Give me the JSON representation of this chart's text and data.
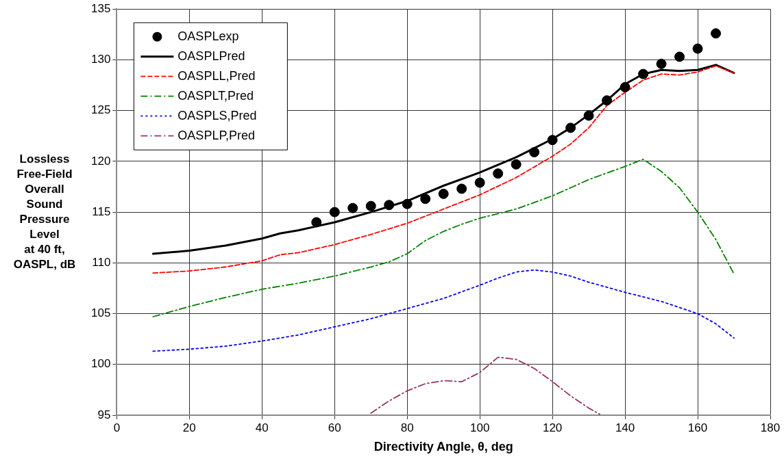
{
  "chart_data": {
    "type": "line",
    "xlabel": "Directivity Angle, θ, deg",
    "ylabel": "Lossless\nFree-Field\nOverall\nSound\nPressure\nLevel\nat 40 ft,\nOASPL, dB",
    "xlim": [
      0,
      180
    ],
    "xticks": [
      0,
      20,
      40,
      60,
      80,
      100,
      120,
      140,
      160,
      180
    ],
    "ylim": [
      95,
      135
    ],
    "yticks": [
      95,
      100,
      105,
      110,
      115,
      120,
      125,
      130,
      135
    ],
    "grid": true,
    "legend": "top left",
    "series": [
      {
        "name": "OASPLexp",
        "type": "scatter",
        "marker": "circle",
        "color": "#000000",
        "x": [
          55,
          60,
          65,
          70,
          75,
          80,
          85,
          90,
          95,
          100,
          105,
          110,
          115,
          120,
          125,
          130,
          135,
          140,
          145,
          150,
          155,
          160,
          165
        ],
        "values": [
          114.0,
          115.0,
          115.4,
          115.6,
          115.7,
          115.8,
          116.3,
          116.8,
          117.3,
          117.9,
          118.8,
          119.7,
          120.9,
          122.1,
          123.3,
          124.5,
          126.0,
          127.3,
          128.6,
          129.6,
          130.3,
          131.1,
          132.6
        ]
      },
      {
        "name": "OASPLPred",
        "marker": "none",
        "line_style": "solid",
        "color": "#000000",
        "x": [
          10,
          20,
          30,
          40,
          45,
          50,
          55,
          60,
          70,
          80,
          90,
          100,
          110,
          120,
          125,
          130,
          135,
          140,
          145,
          150,
          155,
          160,
          165,
          170
        ],
        "values": [
          110.9,
          111.2,
          111.7,
          112.4,
          112.9,
          113.2,
          113.6,
          114.0,
          115.0,
          116.1,
          117.6,
          118.9,
          120.4,
          122.2,
          123.3,
          124.6,
          126.0,
          127.6,
          128.6,
          129.0,
          128.9,
          129.0,
          129.5,
          128.7
        ]
      },
      {
        "name": "OASPLL,Pred",
        "marker": "none",
        "line_style": "dashed",
        "color": "#ff0000",
        "x": [
          10,
          20,
          30,
          40,
          45,
          50,
          60,
          70,
          80,
          90,
          100,
          110,
          120,
          125,
          130,
          135,
          140,
          145,
          150,
          155,
          160,
          165,
          170
        ],
        "values": [
          109.0,
          109.2,
          109.6,
          110.2,
          110.8,
          111.0,
          111.8,
          112.8,
          113.9,
          115.3,
          116.7,
          118.4,
          120.5,
          121.7,
          123.3,
          125.5,
          126.8,
          128.0,
          128.6,
          128.5,
          128.8,
          129.4,
          128.7
        ]
      },
      {
        "name": "OASPLT,Pred",
        "marker": "none",
        "line_style": "dashdot",
        "color": "#008000",
        "x": [
          10,
          20,
          30,
          40,
          50,
          60,
          70,
          75,
          80,
          85,
          90,
          95,
          100,
          110,
          120,
          125,
          130,
          140,
          145,
          150,
          155,
          160,
          165,
          170
        ],
        "values": [
          104.7,
          105.7,
          106.6,
          107.4,
          108.0,
          108.7,
          109.6,
          110.1,
          110.9,
          112.2,
          113.1,
          113.8,
          114.4,
          115.3,
          116.6,
          117.4,
          118.2,
          119.5,
          120.2,
          119.0,
          117.4,
          115.0,
          112.3,
          108.9
        ]
      },
      {
        "name": "OASPLS,Pred",
        "marker": "none",
        "line_style": "dotted",
        "color": "#0000ff",
        "x": [
          10,
          20,
          30,
          40,
          50,
          60,
          70,
          80,
          90,
          100,
          105,
          110,
          115,
          120,
          125,
          130,
          140,
          150,
          160,
          165,
          170
        ],
        "values": [
          101.3,
          101.5,
          101.8,
          102.3,
          102.9,
          103.7,
          104.5,
          105.5,
          106.5,
          107.8,
          108.5,
          109.1,
          109.3,
          109.1,
          108.7,
          108.1,
          107.1,
          106.2,
          105.0,
          104.0,
          102.6
        ]
      },
      {
        "name": "OASPLP,Pred",
        "marker": "none",
        "line_style": "dashdot",
        "color": "#993366",
        "x": [
          70,
          75,
          80,
          85,
          90,
          95,
          100,
          105,
          110,
          115,
          120,
          125,
          130,
          133
        ],
        "values": [
          95.2,
          96.4,
          97.4,
          98.1,
          98.4,
          98.3,
          99.2,
          100.7,
          100.5,
          99.6,
          98.3,
          96.9,
          95.7,
          95.1
        ]
      }
    ]
  }
}
